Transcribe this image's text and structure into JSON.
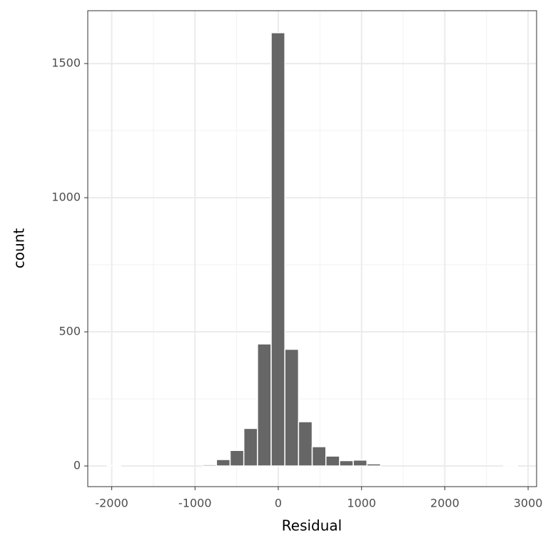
{
  "chart_data": {
    "type": "histogram",
    "x_label": "Residual",
    "y_label": "count",
    "bins": [
      -2057,
      -1892.7,
      -1728.4,
      -1564.1,
      -1399.8,
      -1235.5,
      -1071.2,
      -906.9,
      -742.6,
      -578.3,
      -414,
      -249.7,
      -85.4,
      78.9,
      243.2,
      407.5,
      571.8,
      736.1,
      900.4,
      1064.7,
      1229,
      1393.3,
      1557.6,
      1721.9,
      1886.2,
      2050.5,
      2214.8,
      2379.1,
      2543.4,
      2707.7,
      2872
    ],
    "values": [
      1,
      0,
      0,
      0,
      0,
      0,
      0,
      5,
      24,
      58,
      140,
      455,
      1615,
      435,
      165,
      72,
      37,
      20,
      22,
      8,
      0,
      0,
      0,
      0,
      0,
      0,
      0,
      0,
      0,
      1
    ],
    "color": "#666666",
    "xlim": [
      -2288,
      3102
    ],
    "xticks": [
      -2000,
      -1000,
      0,
      1000,
      2000,
      3000
    ],
    "ylim": [
      -77,
      1697
    ],
    "yticks": [
      0,
      500,
      1000,
      1500
    ],
    "grid": true,
    "minor_grid": true
  }
}
